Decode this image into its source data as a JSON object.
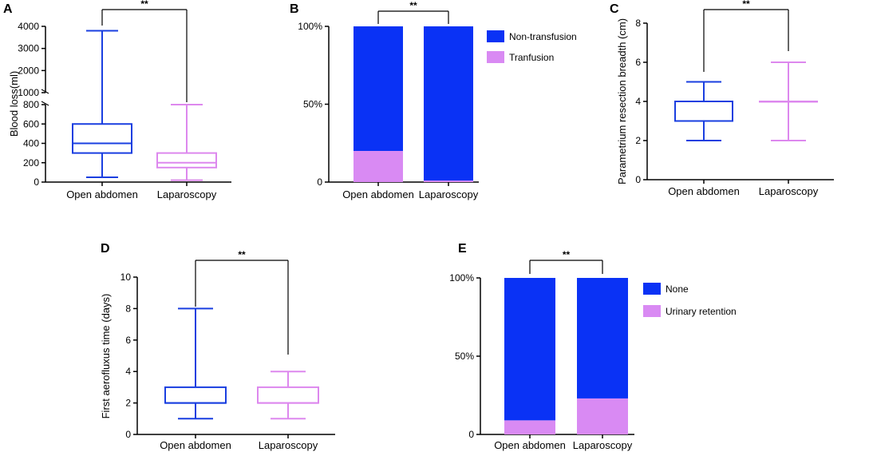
{
  "figure": {
    "colors": {
      "open": "#1a3fe0",
      "lap": "#dd88ee",
      "bar_blue": "#0a32f5",
      "bar_pink": "#d98af3",
      "axis": "#000000"
    }
  },
  "chart_data": [
    {
      "panel": "A",
      "type": "box",
      "ylabel": "Blood loss(ml)",
      "categories": [
        "Open abdomen",
        "Laparoscopy"
      ],
      "y_break": {
        "lower_range": [
          0,
          800
        ],
        "upper_range": [
          1000,
          4000
        ]
      },
      "yticks_lower": [
        "0",
        "200",
        "400",
        "600",
        "800"
      ],
      "yticks_upper": [
        "1000",
        "2000",
        "3000",
        "4000"
      ],
      "boxes": [
        {
          "name": "Open abdomen",
          "min": 50,
          "q1": 300,
          "median": 400,
          "q3": 600,
          "max": 3800
        },
        {
          "name": "Laparoscopy",
          "min": 20,
          "q1": 150,
          "median": 200,
          "q3": 300,
          "max": 800
        }
      ],
      "significance": "**"
    },
    {
      "panel": "B",
      "type": "stacked_bar",
      "categories": [
        "Open abdomen",
        "Laparoscopy"
      ],
      "yticks": [
        "0",
        "50%",
        "100%"
      ],
      "ylim": [
        0,
        100
      ],
      "series": [
        {
          "name": "Non-transfusion",
          "values": [
            80,
            99
          ]
        },
        {
          "name": "Tranfusion",
          "values": [
            20,
            1
          ]
        }
      ],
      "significance": "**"
    },
    {
      "panel": "C",
      "type": "box",
      "ylabel": "Parametrium resection breadth (cm)",
      "categories": [
        "Open abdomen",
        "Laparoscopy"
      ],
      "ylim": [
        0,
        8
      ],
      "yticks": [
        "0",
        "2",
        "4",
        "6",
        "8"
      ],
      "boxes": [
        {
          "name": "Open abdomen",
          "min": 2,
          "q1": 3,
          "median": 3,
          "q3": 4,
          "max": 5
        },
        {
          "name": "Laparoscopy",
          "min": 2,
          "q1": 4,
          "median": 4,
          "q3": 4,
          "max": 6
        }
      ],
      "significance": "**"
    },
    {
      "panel": "D",
      "type": "box",
      "ylabel": "First aerofluxus time (days)",
      "categories": [
        "Open abdomen",
        "Laparoscopy"
      ],
      "ylim": [
        0,
        10
      ],
      "yticks": [
        "0",
        "2",
        "4",
        "6",
        "8",
        "10"
      ],
      "boxes": [
        {
          "name": "Open abdomen",
          "min": 1,
          "q1": 2,
          "median": 2,
          "q3": 3,
          "max": 8
        },
        {
          "name": "Laparoscopy",
          "min": 1,
          "q1": 2,
          "median": 2,
          "q3": 3,
          "max": 4
        }
      ],
      "significance": "**"
    },
    {
      "panel": "E",
      "type": "stacked_bar",
      "categories": [
        "Open abdomen",
        "Laparoscopy"
      ],
      "yticks": [
        "0",
        "50%",
        "100%"
      ],
      "ylim": [
        0,
        100
      ],
      "series": [
        {
          "name": "None",
          "values": [
            91,
            77
          ]
        },
        {
          "name": "Urinary retention",
          "values": [
            9,
            23
          ]
        }
      ],
      "significance": "**"
    }
  ]
}
